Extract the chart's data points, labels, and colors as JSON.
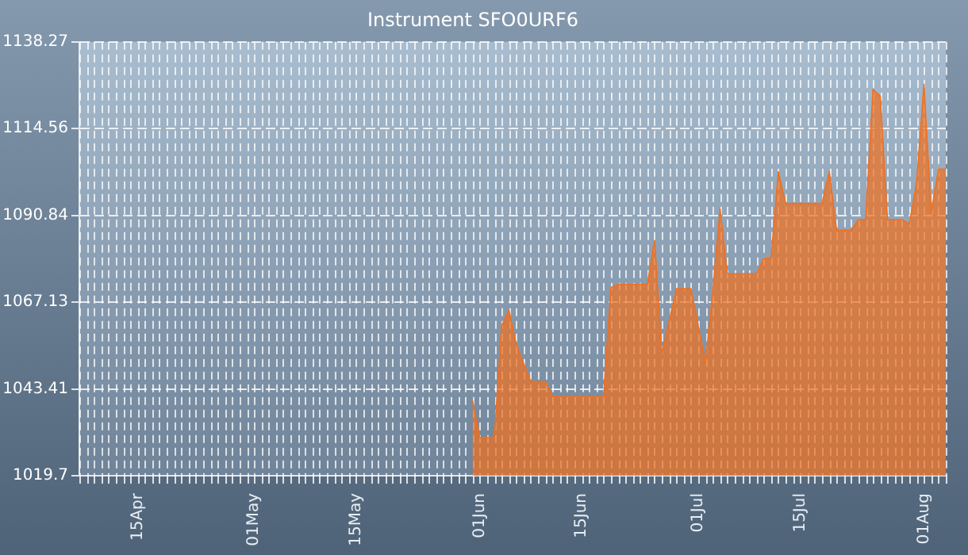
{
  "chart_data": {
    "type": "area",
    "title": "Instrument SFO0URF6",
    "x": [
      "--05-31",
      "--06-01",
      "--06-03",
      "--06-04",
      "--06-05",
      "--06-06",
      "--06-08",
      "--06-10",
      "--06-11",
      "--06-18",
      "--06-19",
      "--06-20",
      "--06-24",
      "--06-25",
      "--06-26",
      "--06-28",
      "--06-30",
      "--07-02",
      "--07-03",
      "--07-04",
      "--07-05",
      "--07-09",
      "--07-10",
      "--07-11",
      "--07-12",
      "--07-13",
      "--07-18",
      "--07-19",
      "--07-20",
      "--07-22",
      "--07-23",
      "--07-24",
      "--07-25",
      "--07-26",
      "--07-27",
      "--07-29",
      "--07-30",
      "--07-31",
      "--08-01",
      "--08-02",
      "--08-03",
      "--08-04"
    ],
    "values": [
      1040.3,
      1030.2,
      1030.2,
      1060.7,
      1065.0,
      1055.6,
      1045.4,
      1045.4,
      1041.3,
      1041.3,
      1071.1,
      1072.0,
      1072.0,
      1083.9,
      1053.1,
      1070.8,
      1070.8,
      1050.6,
      1070.1,
      1092.6,
      1074.9,
      1074.9,
      1079.1,
      1079.1,
      1102.8,
      1094.1,
      1094.1,
      1102.8,
      1086.8,
      1086.8,
      1089.7,
      1089.7,
      1125.3,
      1123.4,
      1089.7,
      1089.7,
      1088.5,
      1099.9,
      1126.7,
      1091.5,
      1103.5,
      1103.5
    ],
    "color": "#f07020",
    "xlim": [
      "--04-07",
      "--08-04"
    ],
    "xticks": [
      {
        "value": "--04-15",
        "label": "15Apr"
      },
      {
        "value": "--05-01",
        "label": "01May"
      },
      {
        "value": "--05-15",
        "label": "15May"
      },
      {
        "value": "--06-01",
        "label": "01Jun"
      },
      {
        "value": "--06-15",
        "label": "15Jun"
      },
      {
        "value": "--07-01",
        "label": "01Jul"
      },
      {
        "value": "--07-15",
        "label": "15Jul"
      },
      {
        "value": "--08-01",
        "label": "01Aug"
      }
    ],
    "ylim": [
      1019.7,
      1138.27
    ],
    "yticks": [
      1019.7,
      1043.41,
      1067.13,
      1090.84,
      1114.56,
      1138.27
    ],
    "grid": true
  }
}
